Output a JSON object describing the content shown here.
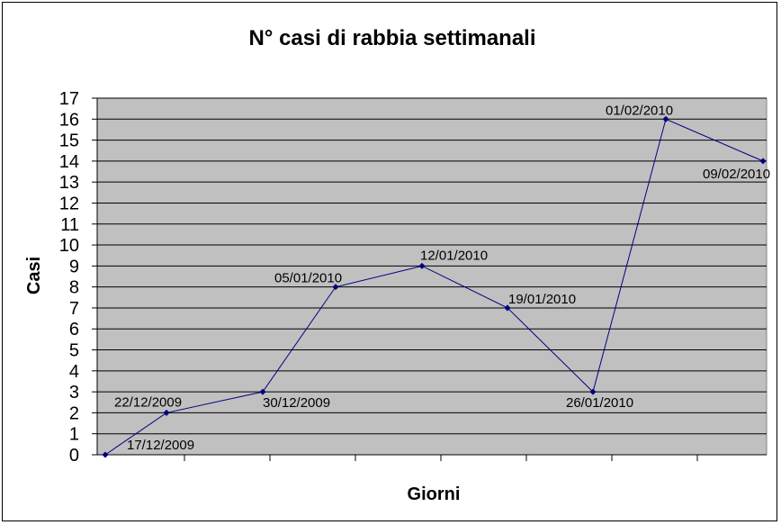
{
  "chart_data": {
    "type": "line",
    "title": "N° casi di rabbia settimanali",
    "xlabel": "Giorni",
    "ylabel": "Casi",
    "ylim": [
      0,
      17
    ],
    "grid": true,
    "legend": "none",
    "x": [
      "17/12/2009",
      "22/12/2009",
      "30/12/2009",
      "05/01/2010",
      "12/01/2010",
      "19/01/2010",
      "26/01/2010",
      "01/02/2010",
      "09/02/2010"
    ],
    "series": [
      {
        "values": [
          0,
          2,
          3,
          8,
          9,
          7,
          3,
          16,
          14
        ]
      }
    ],
    "y_ticks": [
      "0",
      "1",
      "2",
      "3",
      "4",
      "5",
      "6",
      "7",
      "8",
      "9",
      "10",
      "11",
      "12",
      "13",
      "14",
      "15",
      "16",
      "17"
    ],
    "colors": {
      "plot_bg": "#c0c0c0",
      "line": "#000080",
      "grid": "#000000"
    }
  }
}
